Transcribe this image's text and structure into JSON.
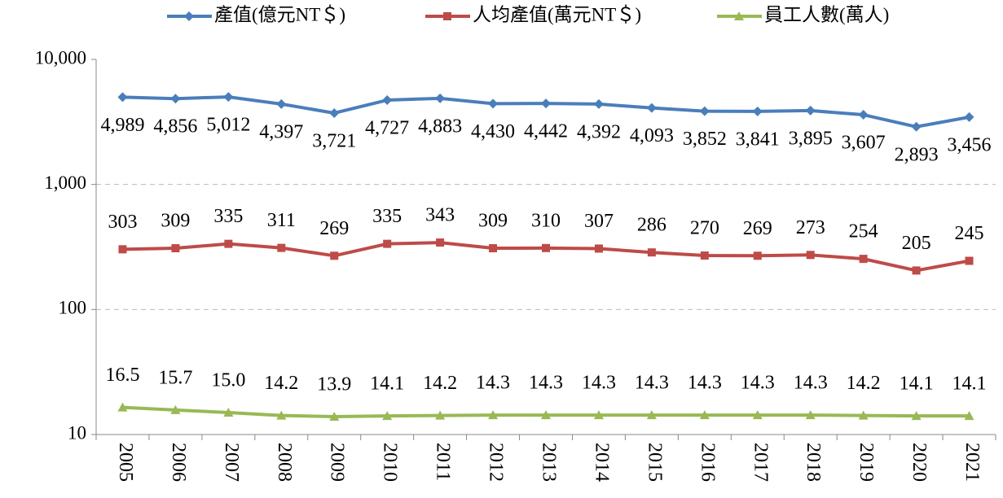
{
  "chart_data": {
    "type": "line",
    "log_scale": true,
    "grid": true,
    "legend": "top",
    "categories": [
      "2005",
      "2006",
      "2007",
      "2008",
      "2009",
      "2010",
      "2011",
      "2012",
      "2013",
      "2014",
      "2015",
      "2016",
      "2017",
      "2018",
      "2019",
      "2020",
      "2021"
    ],
    "ylim": [
      10,
      10000
    ],
    "yticks": [
      10,
      100,
      {
        "value": 1000,
        "label": "1,000"
      },
      {
        "value": 10000,
        "label": "10,000"
      }
    ],
    "series": [
      {
        "name": "產值(億元NT＄)",
        "color": "#4a7ebb",
        "marker": "diamond",
        "values": [
          4989,
          4856,
          5012,
          4397,
          3721,
          4727,
          4883,
          4430,
          4442,
          4392,
          4093,
          3852,
          3841,
          3895,
          3607,
          2893,
          3456
        ],
        "value_labels": [
          "4,989",
          "4,856",
          "5,012",
          "4,397",
          "3,721",
          "4,727",
          "4,883",
          "4,430",
          "4,442",
          "4,392",
          "4,093",
          "3,852",
          "3,841",
          "3,895",
          "3,607",
          "2,893",
          "3,456"
        ]
      },
      {
        "name": "人均產值(萬元NT＄)",
        "color": "#be4b48",
        "marker": "square",
        "values": [
          303,
          309,
          335,
          311,
          269,
          335,
          343,
          309,
          310,
          307,
          286,
          270,
          269,
          273,
          254,
          205,
          245
        ]
      },
      {
        "name": "員工人數(萬人)",
        "color": "#98b954",
        "marker": "triangle",
        "values": [
          16.5,
          15.7,
          15.0,
          14.2,
          13.9,
          14.1,
          14.2,
          14.3,
          14.3,
          14.3,
          14.3,
          14.3,
          14.3,
          14.3,
          14.2,
          14.1,
          14.1
        ],
        "value_labels": [
          "16.5",
          "15.7",
          "15.0",
          "14.2",
          "13.9",
          "14.1",
          "14.2",
          "14.3",
          "14.3",
          "14.3",
          "14.3",
          "14.3",
          "14.3",
          "14.3",
          "14.2",
          "14.1",
          "14.1"
        ]
      }
    ]
  }
}
